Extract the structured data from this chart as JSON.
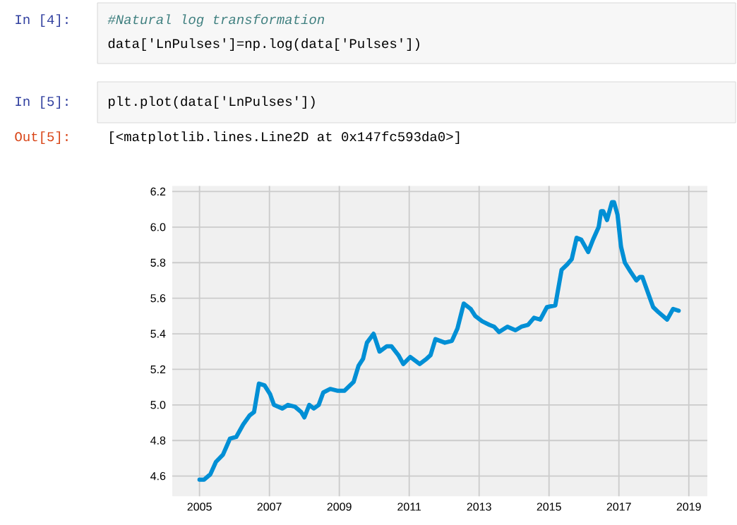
{
  "chart_data": {
    "type": "line",
    "line_style": "solid",
    "grid": true,
    "annotations": [
      "In [4]:",
      "#Natural log transformation",
      "data['LnPulses']=np.log(data['Pulses'])",
      "In [5]:",
      "plt.plot(data['LnPulses'])",
      "Out[5]:",
      "[<matplotlib.lines.Line2D at 0x147fc593da0>]"
    ],
    "xlim": [
      2004.22,
      2019.53
    ],
    "xticks": [
      2005,
      2007,
      2009,
      2011,
      2013,
      2015,
      2017,
      2019
    ],
    "ylim": [
      4.486,
      6.232
    ],
    "yticks": [
      4.6,
      4.8,
      {
        "value": 5,
        "label": "5.0"
      },
      5.2,
      5.4,
      5.6,
      5.8,
      {
        "value": 6,
        "label": "6.0"
      },
      6.2
    ],
    "series": [
      {
        "color": "#008fd5",
        "x": [
          2005.0,
          2005.13,
          2005.31,
          2005.47,
          2005.67,
          2005.87,
          2006.05,
          2006.25,
          2006.43,
          2006.56,
          2006.7,
          2006.86,
          2007.02,
          2007.13,
          2007.37,
          2007.53,
          2007.73,
          2007.91,
          2008.0,
          2008.14,
          2008.27,
          2008.41,
          2008.54,
          2008.74,
          2008.94,
          2009.15,
          2009.41,
          2009.55,
          2009.68,
          2009.79,
          2009.98,
          2010.15,
          2010.36,
          2010.49,
          2010.69,
          2010.83,
          2011.03,
          2011.3,
          2011.5,
          2011.61,
          2011.75,
          2012.02,
          2012.22,
          2012.38,
          2012.56,
          2012.76,
          2012.89,
          2013.09,
          2013.3,
          2013.43,
          2013.57,
          2013.81,
          2014.04,
          2014.21,
          2014.4,
          2014.57,
          2014.75,
          2014.94,
          2015.18,
          2015.36,
          2015.52,
          2015.65,
          2015.79,
          2015.92,
          2016.12,
          2016.26,
          2016.42,
          2016.49,
          2016.55,
          2016.66,
          2016.8,
          2016.86,
          2016.96,
          2017.06,
          2017.17,
          2017.33,
          2017.5,
          2017.6,
          2017.67,
          2017.85,
          2017.98,
          2018.14,
          2018.38,
          2018.55,
          2018.71
        ],
        "values": [
          4.58,
          4.58,
          4.61,
          4.68,
          4.72,
          4.81,
          4.82,
          4.89,
          4.94,
          4.96,
          5.12,
          5.11,
          5.06,
          5.0,
          4.98,
          5.0,
          4.99,
          4.96,
          4.93,
          5.0,
          4.98,
          5.0,
          5.07,
          5.09,
          5.08,
          5.08,
          5.13,
          5.22,
          5.26,
          5.35,
          5.4,
          5.3,
          5.33,
          5.33,
          5.28,
          5.23,
          5.27,
          5.23,
          5.26,
          5.28,
          5.37,
          5.35,
          5.36,
          5.43,
          5.57,
          5.54,
          5.5,
          5.47,
          5.45,
          5.44,
          5.41,
          5.44,
          5.42,
          5.44,
          5.45,
          5.49,
          5.48,
          5.55,
          5.56,
          5.76,
          5.79,
          5.82,
          5.94,
          5.93,
          5.86,
          5.93,
          6.0,
          6.09,
          6.09,
          6.04,
          6.14,
          6.14,
          6.07,
          5.89,
          5.8,
          5.75,
          5.7,
          5.72,
          5.72,
          5.62,
          5.55,
          5.52,
          5.48,
          5.54,
          5.53
        ]
      }
    ]
  }
}
